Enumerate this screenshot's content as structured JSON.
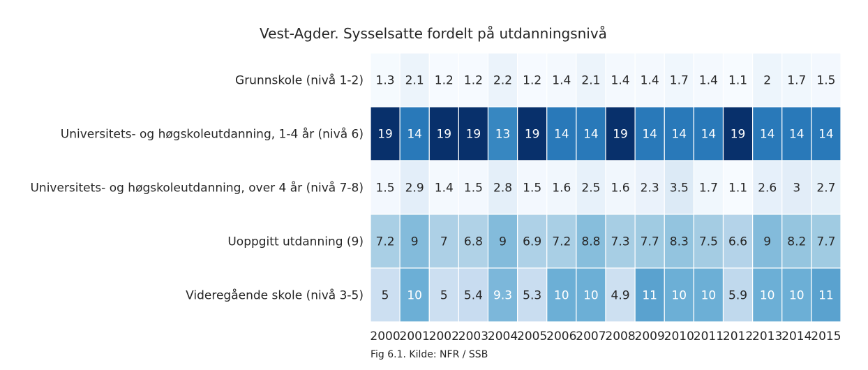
{
  "chart_data": {
    "type": "heatmap",
    "title": "Vest-Agder. Sysselsatte fordelt på utdanningsnivå",
    "x_categories": [
      "2000",
      "2001",
      "2002",
      "2003",
      "2004",
      "2005",
      "2006",
      "2007",
      "2008",
      "2009",
      "2010",
      "2011",
      "2012",
      "2013",
      "2014",
      "2015"
    ],
    "y_categories": [
      "Grunnskole (nivå 1-2)",
      "Universitets- og høgskoleutdanning, 1-4 år (nivå 6)",
      "Universitets- og høgskoleutdanning, over 4 år (nivå 7-8)",
      "Uoppgitt utdanning (9)",
      "Videregående skole (nivå 3-5)"
    ],
    "values": [
      [
        1.3,
        2.1,
        1.2,
        1.2,
        2.2,
        1.2,
        1.4,
        2.1,
        1.4,
        1.4,
        1.7,
        1.4,
        1.1,
        2,
        1.7,
        1.5
      ],
      [
        19,
        14,
        19,
        19,
        13,
        19,
        14,
        14,
        19,
        14,
        14,
        14,
        19,
        14,
        14,
        14
      ],
      [
        1.5,
        2.9,
        1.4,
        1.5,
        2.8,
        1.5,
        1.6,
        2.5,
        1.6,
        2.3,
        3.5,
        1.7,
        1.1,
        2.6,
        3,
        2.7
      ],
      [
        7.2,
        9,
        7,
        6.8,
        9,
        6.9,
        7.2,
        8.8,
        7.3,
        7.7,
        8.3,
        7.5,
        6.6,
        9,
        8.2,
        7.7
      ],
      [
        5,
        10,
        5,
        5.4,
        9.3,
        5.3,
        10,
        10,
        4.9,
        11,
        10,
        10,
        5.9,
        10,
        10,
        11
      ]
    ],
    "color_scale": {
      "name": "Blues",
      "min": 1.1,
      "max": 19,
      "stops": [
        "#f7fbff",
        "#deebf7",
        "#c6dbef",
        "#9ecae1",
        "#6baed6",
        "#4292c6",
        "#2171b5",
        "#08519c",
        "#08306b"
      ]
    },
    "annotations": true,
    "grid": false,
    "legend": "none"
  },
  "caption": "Fig 6.1. Kilde: NFR / SSB"
}
